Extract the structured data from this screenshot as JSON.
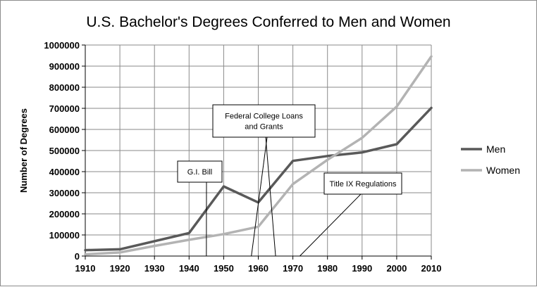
{
  "chart_data": {
    "type": "line",
    "title": "U.S. Bachelor's Degrees Conferred to Men and Women",
    "xlabel": "",
    "ylabel": "Number of Degrees",
    "x": [
      1910,
      1920,
      1930,
      1940,
      1950,
      1960,
      1970,
      1980,
      1990,
      2000,
      2010
    ],
    "xlim": [
      1910,
      2010
    ],
    "ylim": [
      0,
      1000000
    ],
    "x_ticks": [
      "1910",
      "1920",
      "1930",
      "1940",
      "1950",
      "1960",
      "1970",
      "1980",
      "1990",
      "2000",
      "2010"
    ],
    "y_ticks": [
      "0",
      "100000",
      "200000",
      "300000",
      "400000",
      "500000",
      "600000",
      "700000",
      "800000",
      "900000",
      "1000000"
    ],
    "grid": true,
    "legend_position": "right",
    "series": [
      {
        "name": "Men",
        "color": "#595959",
        "points": [
          [
            1910,
            28000
          ],
          [
            1920,
            32000
          ],
          [
            1940,
            109000
          ],
          [
            1950,
            330000
          ],
          [
            1960,
            254000
          ],
          [
            1970,
            451000
          ],
          [
            1980,
            474000
          ],
          [
            1990,
            491000
          ],
          [
            2000,
            530000
          ],
          [
            2010,
            702000
          ]
        ]
      },
      {
        "name": "Women",
        "color": "#b3b3b3",
        "points": [
          [
            1910,
            8000
          ],
          [
            1920,
            17000
          ],
          [
            1930,
            48000
          ],
          [
            1940,
            77000
          ],
          [
            1950,
            104000
          ],
          [
            1960,
            139000
          ],
          [
            1970,
            341000
          ],
          [
            1980,
            456000
          ],
          [
            1990,
            560000
          ],
          [
            2000,
            708000
          ],
          [
            2010,
            946000
          ]
        ]
      }
    ],
    "annotations": [
      {
        "lines": [
          "G.I. Bill"
        ],
        "target_years": [
          1945
        ]
      },
      {
        "lines": [
          "Federal College Loans",
          "and Grants"
        ],
        "target_years": [
          1958,
          1965
        ]
      },
      {
        "lines": [
          "Title IX Regulations"
        ],
        "target_years": [
          1972
        ]
      }
    ]
  }
}
